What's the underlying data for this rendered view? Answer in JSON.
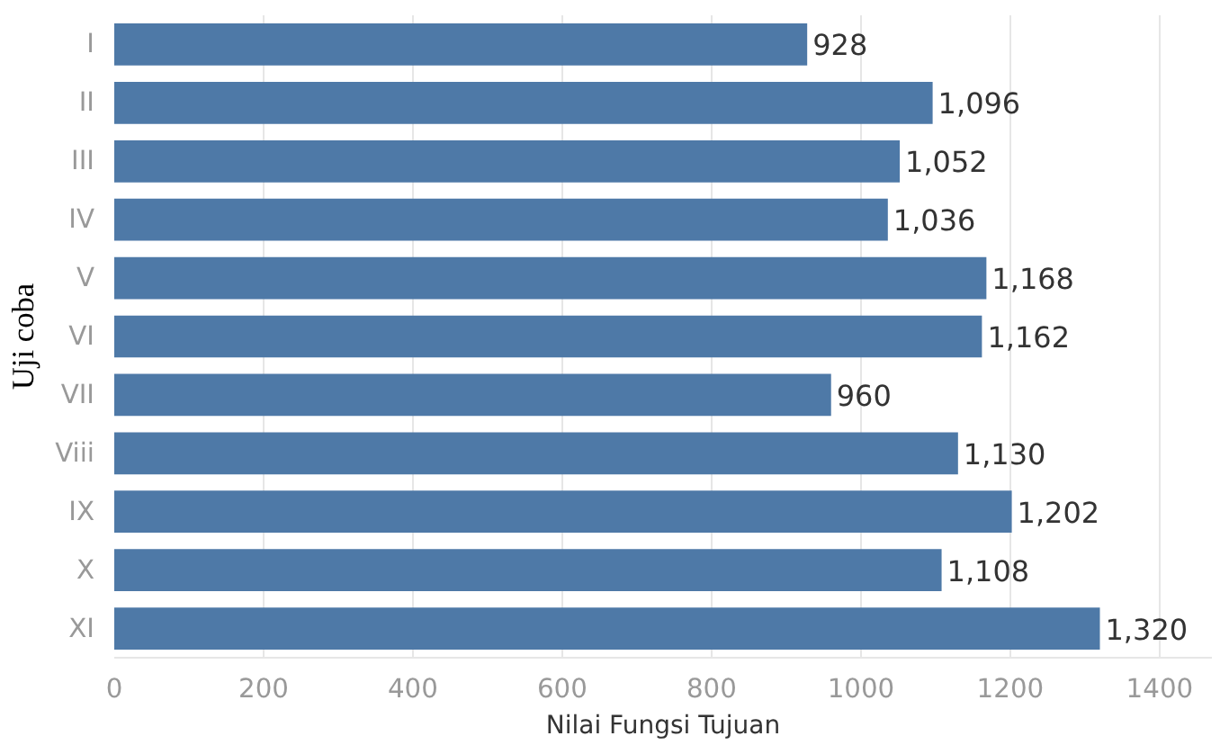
{
  "chart_data": {
    "type": "bar",
    "orientation": "horizontal",
    "xlabel": "Nilai Fungsi Tujuan",
    "ylabel": "Uji coba",
    "categories": [
      "I",
      "II",
      "III",
      "IV",
      "V",
      "VI",
      "VII",
      "Viii",
      "IX",
      "X",
      "XI"
    ],
    "values": [
      928,
      1096,
      1052,
      1036,
      1168,
      1162,
      960,
      1130,
      1202,
      1108,
      1320
    ],
    "value_labels": [
      "928",
      "1,096",
      "1,052",
      "1,036",
      "1,168",
      "1,162",
      "960",
      "1,130",
      "1,202",
      "1,108",
      "1,320"
    ],
    "color": "#4e79a7",
    "xlim": [
      0,
      1470
    ],
    "xticks": [
      0,
      200,
      400,
      600,
      800,
      1000,
      1200,
      1400
    ],
    "grid": "x"
  }
}
